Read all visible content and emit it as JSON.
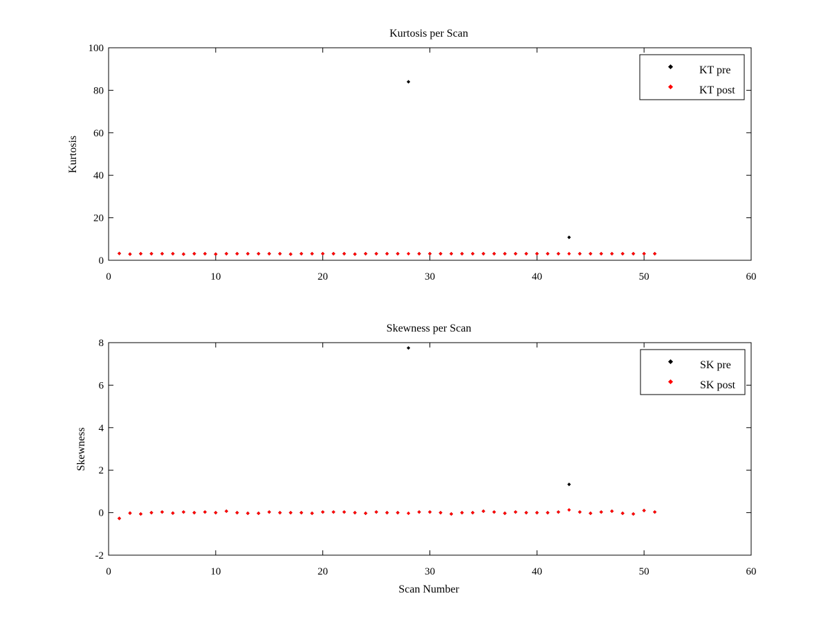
{
  "chart_data": [
    {
      "type": "scatter",
      "title": "Kurtosis per Scan",
      "xlabel": "",
      "ylabel": "Kurtosis",
      "xlim": [
        0,
        60
      ],
      "ylim": [
        0,
        100
      ],
      "xticks": [
        0,
        10,
        20,
        30,
        40,
        50,
        60
      ],
      "yticks": [
        0,
        20,
        40,
        60,
        80,
        100
      ],
      "legend_position": "top-right",
      "grid": false,
      "series": [
        {
          "name": "KT pre",
          "color": "#000000",
          "x": [
            1,
            2,
            3,
            4,
            5,
            6,
            7,
            8,
            9,
            10,
            11,
            12,
            13,
            14,
            15,
            16,
            17,
            18,
            19,
            20,
            21,
            22,
            23,
            24,
            25,
            26,
            27,
            28,
            29,
            30,
            31,
            32,
            33,
            34,
            35,
            36,
            37,
            38,
            39,
            40,
            41,
            42,
            43,
            44,
            45,
            46,
            47,
            48,
            49,
            50,
            51
          ],
          "y": [
            3.2,
            2.9,
            3.1,
            3.1,
            3.1,
            3.1,
            2.9,
            3.1,
            3.1,
            2.9,
            3.1,
            3.1,
            3.1,
            3.1,
            3.1,
            3.1,
            2.9,
            3.1,
            3.1,
            3.1,
            3.1,
            3.1,
            2.9,
            3.1,
            3.1,
            3.1,
            3.1,
            84,
            3.1,
            3.1,
            3.1,
            3.1,
            3.1,
            3.1,
            3.1,
            3.1,
            3.1,
            3.1,
            3.1,
            3.1,
            3.1,
            3.1,
            10.8,
            3.1,
            3.1,
            3.1,
            3.1,
            3.1,
            3.1,
            3.1,
            3.1
          ]
        },
        {
          "name": "KT post",
          "color": "#ff0000",
          "x": [
            1,
            2,
            3,
            4,
            5,
            6,
            7,
            8,
            9,
            10,
            11,
            12,
            13,
            14,
            15,
            16,
            17,
            18,
            19,
            20,
            21,
            22,
            23,
            24,
            25,
            26,
            27,
            28,
            29,
            30,
            31,
            32,
            33,
            34,
            35,
            36,
            37,
            38,
            39,
            40,
            41,
            42,
            43,
            44,
            45,
            46,
            47,
            48,
            49,
            50,
            51
          ],
          "y": [
            3.2,
            2.9,
            3.1,
            3.1,
            3.1,
            3.1,
            2.9,
            3.1,
            3.1,
            2.9,
            3.1,
            3.1,
            3.1,
            3.1,
            3.1,
            3.1,
            2.9,
            3.1,
            3.1,
            3.1,
            3.1,
            3.1,
            2.9,
            3.1,
            3.1,
            3.1,
            3.1,
            3.1,
            3.1,
            3.1,
            3.1,
            3.1,
            3.1,
            3.1,
            3.1,
            3.1,
            3.1,
            3.1,
            3.1,
            3.1,
            3.1,
            3.1,
            3.1,
            3.1,
            3.1,
            3.1,
            3.1,
            3.1,
            3.1,
            3.1,
            3.1
          ]
        }
      ]
    },
    {
      "type": "scatter",
      "title": "Skewness per Scan",
      "xlabel": "Scan Number",
      "ylabel": "Skewness",
      "xlim": [
        0,
        60
      ],
      "ylim": [
        -2,
        8
      ],
      "xticks": [
        0,
        10,
        20,
        30,
        40,
        50,
        60
      ],
      "yticks": [
        -2,
        0,
        2,
        4,
        6,
        8
      ],
      "legend_position": "top-right",
      "grid": false,
      "series": [
        {
          "name": "SK pre",
          "color": "#000000",
          "x": [
            1,
            2,
            3,
            4,
            5,
            6,
            7,
            8,
            9,
            10,
            11,
            12,
            13,
            14,
            15,
            16,
            17,
            18,
            19,
            20,
            21,
            22,
            23,
            24,
            25,
            26,
            27,
            28,
            29,
            30,
            31,
            32,
            33,
            34,
            35,
            36,
            37,
            38,
            39,
            40,
            41,
            42,
            43,
            44,
            45,
            46,
            47,
            48,
            49,
            50,
            51
          ],
          "y": [
            -0.27,
            -0.02,
            -0.06,
            0.0,
            0.03,
            -0.02,
            0.03,
            0.0,
            0.03,
            0.0,
            0.07,
            0.0,
            -0.03,
            -0.03,
            0.03,
            0.0,
            0.0,
            0.0,
            -0.03,
            0.03,
            0.03,
            0.03,
            0.0,
            -0.03,
            0.03,
            0.0,
            0.0,
            7.75,
            0.03,
            0.03,
            0.0,
            -0.06,
            0.0,
            0.0,
            0.07,
            0.03,
            -0.03,
            0.03,
            0.0,
            0.0,
            0.0,
            0.03,
            1.33,
            0.03,
            -0.03,
            0.03,
            0.07,
            -0.03,
            -0.06,
            0.1,
            0.03
          ]
        },
        {
          "name": "SK post",
          "color": "#ff0000",
          "x": [
            1,
            2,
            3,
            4,
            5,
            6,
            7,
            8,
            9,
            10,
            11,
            12,
            13,
            14,
            15,
            16,
            17,
            18,
            19,
            20,
            21,
            22,
            23,
            24,
            25,
            26,
            27,
            28,
            29,
            30,
            31,
            32,
            33,
            34,
            35,
            36,
            37,
            38,
            39,
            40,
            41,
            42,
            43,
            44,
            45,
            46,
            47,
            48,
            49,
            50,
            51
          ],
          "y": [
            -0.27,
            -0.02,
            -0.06,
            0.0,
            0.03,
            -0.02,
            0.03,
            0.0,
            0.03,
            0.0,
            0.07,
            0.0,
            -0.03,
            -0.03,
            0.03,
            0.0,
            0.0,
            0.0,
            -0.03,
            0.03,
            0.03,
            0.03,
            0.0,
            -0.03,
            0.03,
            0.0,
            0.0,
            -0.03,
            0.03,
            0.03,
            0.0,
            -0.06,
            0.0,
            0.0,
            0.07,
            0.03,
            -0.03,
            0.03,
            0.0,
            0.0,
            0.0,
            0.03,
            0.13,
            0.03,
            -0.03,
            0.03,
            0.07,
            -0.03,
            -0.06,
            0.1,
            0.03
          ]
        }
      ]
    }
  ]
}
